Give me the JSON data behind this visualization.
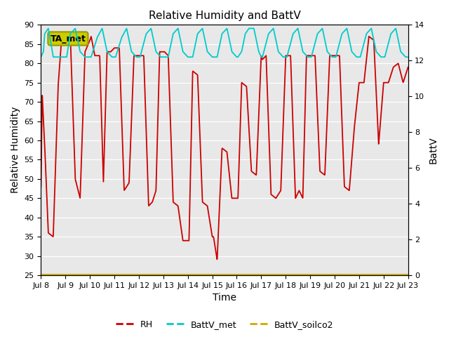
{
  "title": "Relative Humidity and BattV",
  "xlabel": "Time",
  "ylabel_left": "Relative Humidity",
  "ylabel_right": "BattV",
  "ylim_left": [
    25,
    90
  ],
  "ylim_right": [
    0,
    14
  ],
  "bg_color": "#ffffff",
  "plot_bg_color": "#e8e8e8",
  "grid_color": "#ffffff",
  "annotation_label": "TA_met",
  "annotation_bg": "#cccc00",
  "annotation_edge": "#999900",
  "xtick_labels": [
    "Jul 8",
    "Jul 9",
    "Jul 10",
    "Jul 11",
    "Jul 12",
    "Jul 13",
    "Jul 14",
    "Jul 15",
    "Jul 16",
    "Jul 17",
    "Jul 18",
    "Jul 19",
    "Jul 20",
    "Jul 21",
    "Jul 22",
    "Jul 23"
  ],
  "rh_color": "#cc0000",
  "battv_met_color": "#00cccc",
  "battv_soilco2_color": "#ccaa00",
  "legend_labels": [
    "RH",
    "BattV_met",
    "BattV_soilco2"
  ],
  "rh_t": [
    0.0,
    0.05,
    0.15,
    0.3,
    0.5,
    0.7,
    0.85,
    1.0,
    1.05,
    1.2,
    1.4,
    1.6,
    1.8,
    2.0,
    2.05,
    2.2,
    2.4,
    2.55,
    2.7,
    2.85,
    3.0,
    3.05,
    3.2,
    3.4,
    3.6,
    3.8,
    4.0,
    4.05,
    4.2,
    4.4,
    4.55,
    4.7,
    4.85,
    5.0,
    5.05,
    5.2,
    5.4,
    5.6,
    5.8,
    6.0,
    6.05,
    6.2,
    6.4,
    6.6,
    6.8,
    7.0,
    7.05,
    7.2,
    7.4,
    7.6,
    7.8,
    8.0,
    8.05,
    8.2,
    8.4,
    8.6,
    8.8,
    9.0,
    9.05,
    9.2,
    9.4,
    9.6,
    9.8,
    10.0,
    10.05,
    10.2,
    10.4,
    10.55,
    10.7,
    10.85,
    11.0,
    11.05,
    11.2,
    11.4,
    11.6,
    11.8,
    12.0,
    12.05,
    12.2,
    12.4,
    12.6,
    12.8,
    13.0,
    13.05,
    13.2,
    13.4,
    13.6,
    13.8,
    14.0,
    14.05,
    14.2,
    14.4,
    14.6,
    14.8,
    15.0
  ],
  "rh_v": [
    48,
    72,
    59,
    36,
    35,
    74,
    87,
    86,
    87,
    87,
    50,
    45,
    83,
    86,
    87,
    82,
    82,
    49,
    83,
    83,
    84,
    84,
    84,
    47,
    49,
    82,
    82,
    82,
    82,
    43,
    44,
    47,
    83,
    83,
    83,
    82,
    44,
    43,
    34,
    34,
    34,
    78,
    77,
    44,
    43,
    35,
    35,
    29,
    58,
    57,
    45,
    45,
    45,
    75,
    74,
    52,
    51,
    82,
    81,
    82,
    46,
    45,
    47,
    82,
    82,
    82,
    45,
    47,
    45,
    82,
    82,
    82,
    82,
    52,
    51,
    82,
    82,
    82,
    82,
    48,
    47,
    63,
    75,
    75,
    75,
    87,
    86,
    59,
    75,
    75,
    75,
    79,
    80,
    75,
    79
  ],
  "bv_t": [
    0.0,
    0.1,
    0.15,
    0.3,
    0.5,
    0.55,
    0.7,
    0.9,
    1.0,
    1.05,
    1.2,
    1.4,
    1.6,
    1.8,
    2.0,
    2.05,
    2.3,
    2.5,
    2.7,
    2.9,
    3.0,
    3.05,
    3.3,
    3.5,
    3.7,
    3.9,
    4.0,
    4.05,
    4.3,
    4.5,
    4.7,
    4.9,
    5.0,
    5.05,
    5.2,
    5.4,
    5.6,
    5.8,
    6.0,
    6.05,
    6.2,
    6.4,
    6.6,
    6.8,
    7.0,
    7.05,
    7.2,
    7.4,
    7.6,
    7.8,
    8.0,
    8.05,
    8.2,
    8.35,
    8.5,
    8.7,
    8.9,
    9.0,
    9.05,
    9.3,
    9.5,
    9.7,
    9.9,
    10.0,
    10.05,
    10.3,
    10.5,
    10.7,
    10.9,
    11.0,
    11.05,
    11.3,
    11.5,
    11.7,
    11.9,
    12.0,
    12.05,
    12.3,
    12.5,
    12.7,
    12.9,
    13.0,
    13.05,
    13.3,
    13.5,
    13.7,
    13.9,
    14.0,
    14.05,
    14.3,
    14.5,
    14.7,
    14.9,
    15.0
  ],
  "bv_v": [
    12.2,
    12.5,
    13.5,
    13.8,
    12.2,
    12.2,
    12.2,
    12.2,
    12.2,
    12.2,
    13.5,
    13.8,
    12.5,
    12.2,
    12.2,
    12.2,
    13.3,
    13.8,
    12.5,
    12.2,
    12.2,
    12.2,
    13.3,
    13.8,
    12.5,
    12.2,
    12.2,
    12.2,
    13.5,
    13.8,
    12.5,
    12.2,
    12.2,
    12.2,
    12.2,
    13.5,
    13.8,
    12.5,
    12.2,
    12.2,
    12.2,
    13.5,
    13.8,
    12.5,
    12.2,
    12.2,
    12.2,
    13.5,
    13.8,
    12.5,
    12.2,
    12.2,
    12.5,
    13.5,
    13.8,
    13.8,
    12.5,
    12.2,
    12.2,
    13.5,
    13.8,
    12.5,
    12.2,
    12.2,
    12.2,
    13.5,
    13.8,
    12.5,
    12.2,
    12.2,
    12.2,
    13.5,
    13.8,
    12.5,
    12.2,
    12.2,
    12.2,
    13.5,
    13.8,
    12.5,
    12.2,
    12.2,
    12.2,
    13.5,
    13.8,
    12.5,
    12.2,
    12.2,
    12.2,
    13.5,
    13.8,
    12.5,
    12.2,
    12.2
  ],
  "battv_soilco2_val": 0.05,
  "yticks_left": [
    25,
    30,
    35,
    40,
    45,
    50,
    55,
    60,
    65,
    70,
    75,
    80,
    85,
    90
  ],
  "yticks_right": [
    0,
    2,
    4,
    6,
    8,
    10,
    12,
    14
  ]
}
